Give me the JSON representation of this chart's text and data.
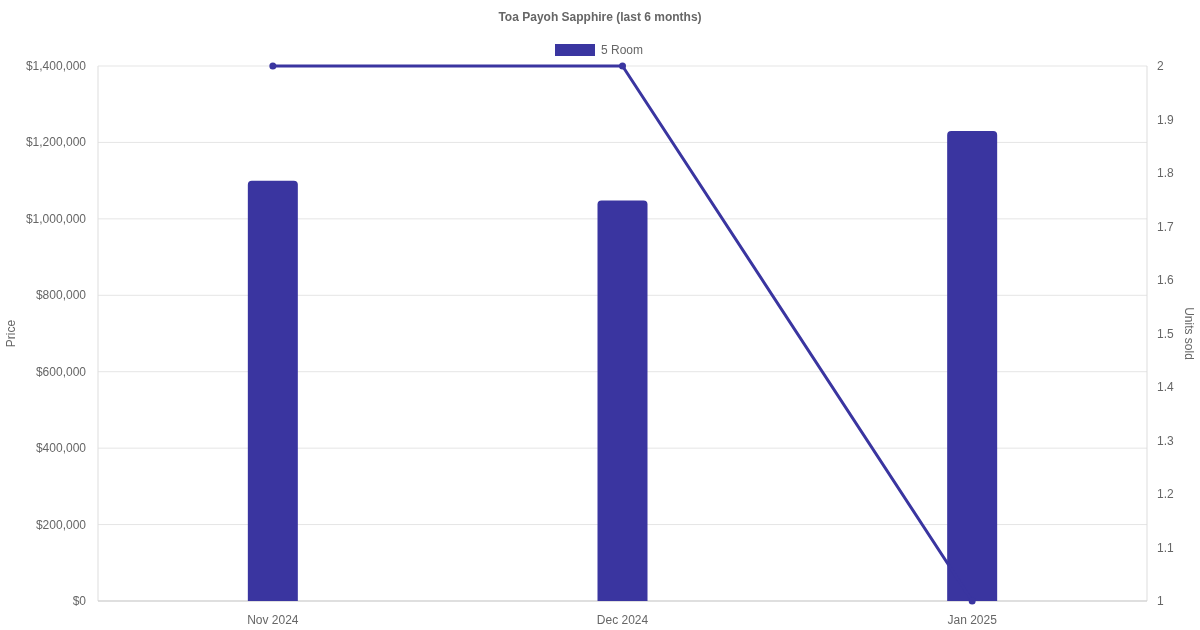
{
  "chart_data": {
    "type": "bar",
    "title": "Toa Payoh Sapphire (last 6 months)",
    "ylabel": "Price",
    "y2label": "Units sold",
    "categories": [
      "Nov 2024",
      "Dec 2024",
      "Jan 2025"
    ],
    "series": [
      {
        "name": "5 Room",
        "color": "#3a35a0",
        "values": [
          1100000,
          1048000,
          1230000
        ]
      },
      {
        "type": "line",
        "axis": "y2",
        "color": "#3a35a0",
        "values": [
          2,
          2,
          1
        ]
      }
    ],
    "ylim": [
      0,
      1400000
    ],
    "yticks": [
      {
        "value": 0,
        "label": "$0"
      },
      {
        "value": 200000,
        "label": "$200,000"
      },
      {
        "value": 400000,
        "label": "$400,000"
      },
      {
        "value": 600000,
        "label": "$600,000"
      },
      {
        "value": 800000,
        "label": "$800,000"
      },
      {
        "value": 1000000,
        "label": "$1,000,000"
      },
      {
        "value": 1200000,
        "label": "$1,200,000"
      },
      {
        "value": 1400000,
        "label": "$1,400,000"
      }
    ],
    "y2lim": [
      1,
      2
    ],
    "y2ticks": [
      1,
      1.1,
      1.2,
      1.3,
      1.4,
      1.5,
      1.6,
      1.7,
      1.8,
      1.9,
      2
    ],
    "grid": "y",
    "legend": "top",
    "marker": "circle"
  }
}
